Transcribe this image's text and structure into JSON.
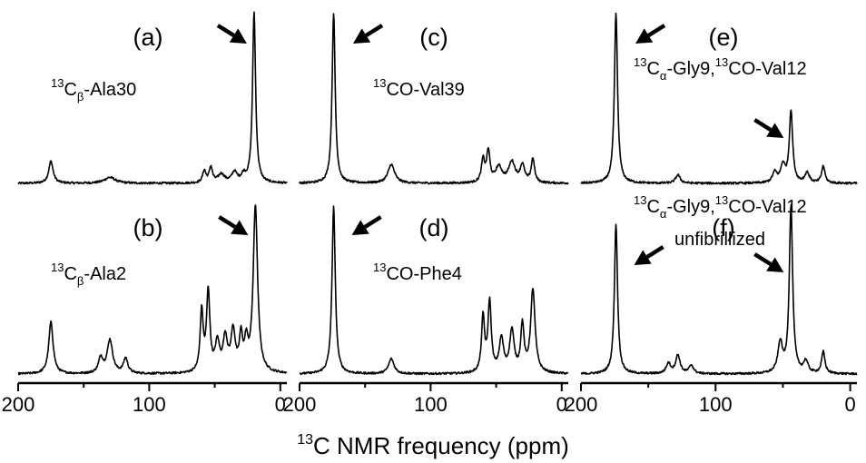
{
  "xlabel_sup": "13",
  "xlabel": "C NMR frequency (ppm)",
  "chart_data": {
    "type": "line",
    "x_axis": "13C NMR frequency (ppm)",
    "x_reversed": true,
    "columns": [
      {
        "xlim": [
          200,
          -5
        ],
        "ticks": [
          200,
          100,
          0
        ]
      },
      {
        "xlim": [
          200,
          -5
        ],
        "ticks": [
          200,
          100,
          0
        ]
      },
      {
        "xlim": [
          200,
          -5
        ],
        "ticks": [
          200,
          100,
          0
        ]
      }
    ],
    "panels": [
      {
        "id": "a",
        "letter": "(a)",
        "column": 0,
        "row": 0,
        "label": [
          {
            "sup": "13"
          },
          {
            "text": "C"
          },
          {
            "sub": "β"
          },
          {
            "text": "-Ala30"
          }
        ],
        "arrows": [
          {
            "ppm": 20,
            "dir": "down-right"
          }
        ],
        "peaks": [
          [
            175,
            0.13,
            2
          ],
          [
            130,
            0.035,
            5
          ],
          [
            58,
            0.07,
            1.5
          ],
          [
            53,
            0.09,
            1.5
          ],
          [
            45,
            0.05,
            3
          ],
          [
            35,
            0.06,
            2.5
          ],
          [
            28,
            0.04,
            2
          ],
          [
            20,
            1.0,
            1.4
          ]
        ]
      },
      {
        "id": "b",
        "letter": "(b)",
        "column": 0,
        "row": 1,
        "label": [
          {
            "sup": "13"
          },
          {
            "text": "C"
          },
          {
            "sub": "β"
          },
          {
            "text": "-Ala2"
          }
        ],
        "arrows": [
          {
            "ppm": 19,
            "dir": "down-right"
          }
        ],
        "peaks": [
          [
            175,
            0.31,
            2
          ],
          [
            137,
            0.09,
            2
          ],
          [
            130,
            0.2,
            2.5
          ],
          [
            118,
            0.09,
            2
          ],
          [
            60,
            0.36,
            1.4
          ],
          [
            55,
            0.48,
            1.5
          ],
          [
            48,
            0.17,
            2
          ],
          [
            42,
            0.2,
            2
          ],
          [
            36,
            0.24,
            2
          ],
          [
            30,
            0.2,
            1.5
          ],
          [
            26,
            0.16,
            1.5
          ],
          [
            19,
            1.0,
            2
          ]
        ]
      },
      {
        "id": "c",
        "letter": "(c)",
        "column": 1,
        "row": 0,
        "label": [
          {
            "sup": "13"
          },
          {
            "text": "CO-Val39"
          }
        ],
        "arrows": [
          {
            "ppm": 173,
            "dir": "down-left"
          }
        ],
        "peaks": [
          [
            174,
            1.0,
            1.4
          ],
          [
            130,
            0.11,
            3
          ],
          [
            60,
            0.13,
            1.5
          ],
          [
            56,
            0.18,
            1.5
          ],
          [
            48,
            0.09,
            3
          ],
          [
            38,
            0.12,
            3
          ],
          [
            30,
            0.1,
            2
          ],
          [
            22,
            0.14,
            1.5
          ]
        ]
      },
      {
        "id": "d",
        "letter": "(d)",
        "column": 1,
        "row": 1,
        "label": [
          {
            "sup": "13"
          },
          {
            "text": "CO-Phe4"
          }
        ],
        "arrows": [
          {
            "ppm": 174,
            "dir": "down-left"
          }
        ],
        "peaks": [
          [
            174,
            1.0,
            1.5
          ],
          [
            130,
            0.09,
            2.5
          ],
          [
            60,
            0.33,
            1.4
          ],
          [
            55,
            0.42,
            1.5
          ],
          [
            46,
            0.2,
            2
          ],
          [
            38,
            0.25,
            2
          ],
          [
            30,
            0.28,
            1.5
          ],
          [
            22,
            0.5,
            2
          ]
        ]
      },
      {
        "id": "e",
        "letter": "(e)",
        "column": 2,
        "row": 0,
        "label": [
          {
            "sup": "13"
          },
          {
            "text": "C"
          },
          {
            "sub": "α"
          },
          {
            "text": "-Gly9,"
          },
          {
            "sup": "13"
          },
          {
            "text": "CO-Val12"
          }
        ],
        "arrows": [
          {
            "ppm": 44,
            "dir": "down-right"
          },
          {
            "ppm": 173,
            "dir": "down-left"
          }
        ],
        "peaks": [
          [
            174,
            1.0,
            1.4
          ],
          [
            128,
            0.05,
            2
          ],
          [
            56,
            0.06,
            2
          ],
          [
            50,
            0.1,
            2
          ],
          [
            44,
            0.42,
            1.5
          ],
          [
            32,
            0.06,
            2
          ],
          [
            20,
            0.1,
            1.5
          ]
        ]
      },
      {
        "id": "f",
        "letter": "(f)",
        "column": 2,
        "row": 1,
        "label": [
          {
            "sup": "13"
          },
          {
            "text": "C"
          },
          {
            "sub": "α"
          },
          {
            "text": "-Gly9,"
          },
          {
            "sup": "13"
          },
          {
            "text": "CO-Val12"
          }
        ],
        "label2": "unfibrillized",
        "arrows": [
          {
            "ppm": 174,
            "dir": "down-left"
          },
          {
            "ppm": 44,
            "dir": "down-right"
          }
        ],
        "peaks": [
          [
            174,
            0.9,
            1.4
          ],
          [
            135,
            0.06,
            2
          ],
          [
            128,
            0.11,
            2
          ],
          [
            118,
            0.05,
            2
          ],
          [
            52,
            0.18,
            2
          ],
          [
            44,
            1.0,
            1.5
          ],
          [
            33,
            0.07,
            2
          ],
          [
            20,
            0.13,
            1.5
          ]
        ]
      }
    ]
  }
}
